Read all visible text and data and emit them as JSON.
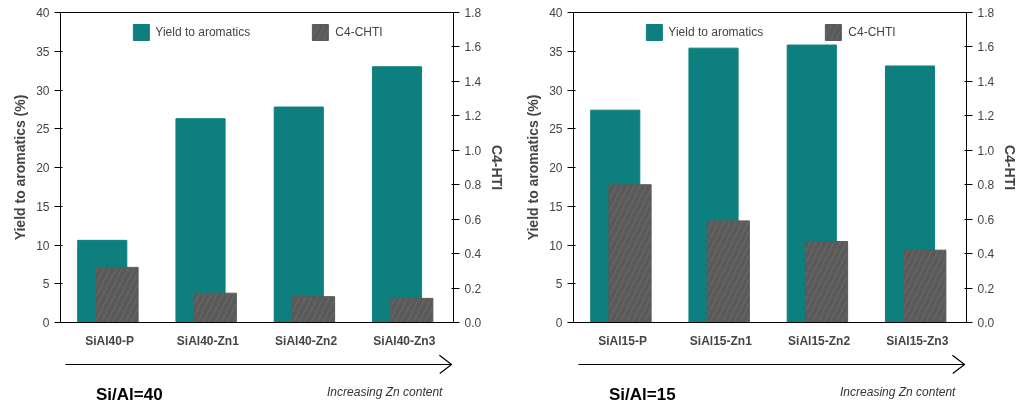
{
  "chart_data": [
    {
      "type": "bar",
      "categories": [
        "SiAl40-P",
        "SiAl40-Zn1",
        "SiAl40-Zn2",
        "SiAl40-Zn3"
      ],
      "ylabel": "Yield to aromatics (%)",
      "y2label": "C4-HTI",
      "series": [
        {
          "name": "Yield to aromatics",
          "color": "#0e7f7f",
          "values": [
            10.6,
            26.3,
            27.8,
            33.0
          ]
        },
        {
          "name": "C4-CHTI",
          "color": "#5a5a5a",
          "axis": "y2",
          "values": [
            0.32,
            0.17,
            0.15,
            0.14
          ]
        }
      ],
      "ylim": [
        0,
        40
      ],
      "yticks": [
        0,
        5,
        10,
        15,
        20,
        25,
        30,
        35,
        40
      ],
      "y2lim": [
        0,
        1.8
      ],
      "y2ticks": [
        {
          "value": 0,
          "label": "0.0"
        },
        {
          "value": 0.2,
          "label": "0.2"
        },
        {
          "value": 0.4,
          "label": "0.4"
        },
        {
          "value": 0.6,
          "label": "0.6"
        },
        {
          "value": 0.8,
          "label": "0.8"
        },
        {
          "value": 1.0,
          "label": "1.0"
        },
        {
          "value": 1.2,
          "label": "1.2"
        },
        {
          "value": 1.4,
          "label": "1.4"
        },
        {
          "value": 1.6,
          "label": "1.6"
        },
        {
          "value": 1.8,
          "label": "1.8"
        }
      ],
      "legend": "top",
      "grid": false,
      "annotations": [
        "Si/Al=40",
        "Increasing Zn content"
      ]
    },
    {
      "type": "bar",
      "categories": [
        "SiAl15-P",
        "SiAl15-Zn1",
        "SiAl15-Zn2",
        "SiAl15-Zn3"
      ],
      "ylabel": "Yield to aromatics (%)",
      "y2label": "C4-HTI",
      "series": [
        {
          "name": "Yield to aromatics",
          "color": "#0e7f7f",
          "values": [
            27.4,
            35.4,
            35.8,
            33.1
          ]
        },
        {
          "name": "C4-CHTI",
          "color": "#5a5a5a",
          "axis": "y2",
          "values": [
            0.8,
            0.59,
            0.47,
            0.42
          ]
        }
      ],
      "ylim": [
        0,
        40
      ],
      "yticks": [
        0,
        5,
        10,
        15,
        20,
        25,
        30,
        35,
        40
      ],
      "y2lim": [
        0,
        1.8
      ],
      "y2ticks": [
        {
          "value": 0,
          "label": "0.0"
        },
        {
          "value": 0.2,
          "label": "0.2"
        },
        {
          "value": 0.4,
          "label": "0.4"
        },
        {
          "value": 0.6,
          "label": "0.6"
        },
        {
          "value": 0.8,
          "label": "0.8"
        },
        {
          "value": 1.0,
          "label": "1.0"
        },
        {
          "value": 1.2,
          "label": "1.2"
        },
        {
          "value": 1.4,
          "label": "1.4"
        },
        {
          "value": 1.6,
          "label": "1.6"
        },
        {
          "value": 1.8,
          "label": "1.8"
        }
      ],
      "legend": "top",
      "grid": false,
      "annotations": [
        "Si/Al=15",
        "Increasing Zn content"
      ]
    }
  ]
}
